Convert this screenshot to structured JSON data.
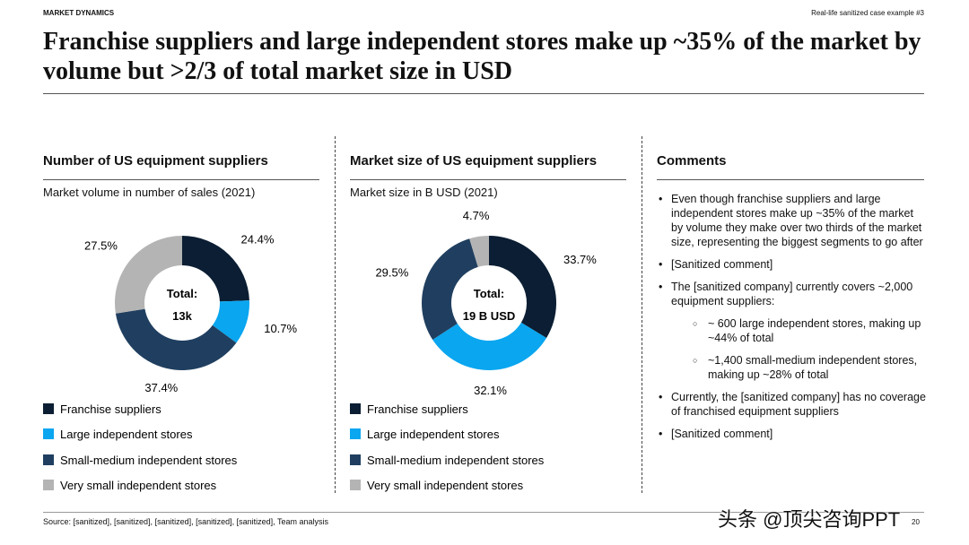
{
  "header": {
    "section": "MARKET DYNAMICS",
    "tag": "Real-life sanitized case example #3",
    "title": "Franchise suppliers and large independent stores make up ~35% of the market by volume but >2/3 of total market size in USD"
  },
  "chart_data": [
    {
      "type": "pie",
      "title": "Number of US equipment suppliers",
      "subtitle": "Market volume in number of sales (2021)",
      "center_label": "Total:",
      "center_value": "13k",
      "categories": [
        "Franchise suppliers",
        "Large independent stores",
        "Small-medium independent stores",
        "Very small independent stores"
      ],
      "values": [
        24.4,
        10.7,
        37.4,
        27.5
      ],
      "value_labels": [
        "24.4%",
        "10.7%",
        "37.4%",
        "27.5%"
      ],
      "colors": [
        "#0b1e33",
        "#0aa6f0",
        "#203f60",
        "#b4b4b4"
      ]
    },
    {
      "type": "pie",
      "title": "Market size of US equipment suppliers",
      "subtitle": "Market size in B USD (2021)",
      "center_label": "Total:",
      "center_value": "19 B USD",
      "categories": [
        "Franchise suppliers",
        "Large independent stores",
        "Small-medium independent stores",
        "Very small independent stores"
      ],
      "values": [
        33.7,
        32.1,
        29.5,
        4.7
      ],
      "value_labels": [
        "33.7%",
        "32.1%",
        "29.5%",
        "4.7%"
      ],
      "colors": [
        "#0b1e33",
        "#0aa6f0",
        "#203f60",
        "#b4b4b4"
      ]
    }
  ],
  "comments": {
    "title": "Comments",
    "items": [
      {
        "text": "Even though franchise suppliers and large independent stores make up ~35% of the market by volume they make over two thirds of the market size, representing the biggest segments to go after",
        "sub": []
      },
      {
        "text": "[Sanitized comment]",
        "sub": []
      },
      {
        "text": "The [sanitized company] currently covers ~2,000 equipment suppliers:",
        "sub": [
          "~ 600 large independent stores, making up ~44% of total",
          "~1,400 small-medium independent stores, making up ~28% of total"
        ]
      },
      {
        "text": "Currently, the [sanitized company] has no coverage of franchised equipment suppliers",
        "sub": []
      },
      {
        "text": "[Sanitized comment]",
        "sub": []
      }
    ]
  },
  "footer": {
    "source": "Source: [sanitized], [sanitized], [sanitized], [sanitized], [sanitized], Team analysis",
    "page": "20",
    "watermark": "头条 @顶尖咨询PPT"
  }
}
